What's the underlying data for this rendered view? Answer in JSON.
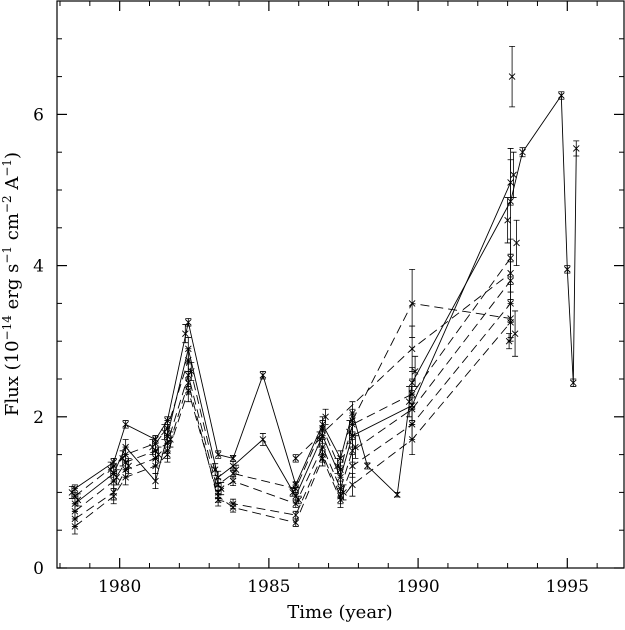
{
  "chart_data": {
    "type": "line",
    "title": "",
    "xlabel": "Time (year)",
    "ylabel_prefix": "Flux (10",
    "ylabel_exp1": "−14",
    "ylabel_mid1": " erg s",
    "ylabel_exp2": "−1",
    "ylabel_mid2": " cm",
    "ylabel_exp3": "−2",
    "ylabel_mid3": " A",
    "ylabel_exp4": "−1",
    "ylabel_suffix": ")",
    "xlim": [
      1977.9,
      1996.9
    ],
    "ylim": [
      0,
      7.5
    ],
    "x_ticks": [
      1980,
      1985,
      1990,
      1995
    ],
    "x_tick_labels": [
      "1980",
      "1985",
      "1990",
      "1995"
    ],
    "y_ticks": [
      0,
      2,
      4,
      6
    ],
    "y_tick_labels": [
      "0",
      "2",
      "4",
      "6"
    ],
    "x_minor_step": 1,
    "y_minor_step": 0.5,
    "grid": false,
    "legend": "none",
    "series": [
      {
        "style": "solid",
        "x": [
          1978.5,
          1979.8,
          1980.2,
          1981.2,
          1981.6,
          1982.3,
          1983.3,
          1983.8,
          1984.8,
          1985.9,
          1986.8,
          1987.4,
          1987.8,
          1988.3,
          1989.3,
          1989.8,
          1993.1,
          1993.5,
          1994.8,
          1995.0,
          1995.2,
          1995.3
        ],
        "y": [
          1.05,
          1.4,
          1.9,
          1.7,
          1.95,
          3.25,
          1.5,
          1.45,
          2.55,
          1.1,
          1.9,
          1.45,
          2.05,
          1.35,
          0.97,
          2.45,
          4.85,
          5.5,
          6.25,
          3.95,
          2.45,
          5.55
        ],
        "err": [
          0.05,
          0.05,
          0.05,
          0.05,
          0.05,
          0.05,
          0.05,
          0.04,
          0.05,
          0.04,
          0.1,
          0.1,
          0.15,
          0.04,
          0.03,
          0.2,
          0.7,
          0.06,
          0.05,
          0.05,
          0.05,
          0.1
        ]
      },
      {
        "style": "solid",
        "x": [
          1978.5,
          1979.8,
          1980.2,
          1981.2,
          1981.6,
          1982.3,
          1983.3,
          1983.8,
          1984.8,
          1985.9,
          1986.8,
          1987.4,
          1987.8,
          1989.8,
          1993.1
        ],
        "y": [
          0.85,
          1.25,
          1.6,
          1.15,
          1.75,
          2.9,
          1.2,
          1.35,
          1.7,
          0.95,
          1.75,
          1.2,
          1.75,
          2.15,
          5.1
        ],
        "err": [
          0.1,
          0.1,
          0.1,
          0.1,
          0.1,
          0.15,
          0.08,
          0.06,
          0.08,
          0.05,
          0.1,
          0.1,
          0.15,
          0.2,
          0.3
        ]
      },
      {
        "style": "dashed",
        "x": [
          1978.5,
          1979.8,
          1980.2,
          1981.2,
          1981.6,
          1982.3,
          1983.3,
          1983.8,
          1985.9,
          1986.8,
          1987.4,
          1987.8,
          1989.8,
          1993.1
        ],
        "y": [
          0.95,
          1.35,
          1.5,
          1.65,
          1.85,
          2.75,
          1.1,
          1.25,
          1.05,
          1.85,
          1.3,
          1.9,
          2.3,
          4.1
        ],
        "err": [
          0.1,
          0.1,
          0.1,
          0.1,
          0.1,
          0.15,
          0.08,
          0.06,
          0.05,
          0.1,
          0.1,
          0.15,
          0.2,
          0.25
        ]
      },
      {
        "style": "dashed",
        "x": [
          1978.5,
          1979.8,
          1980.2,
          1981.2,
          1981.6,
          1982.3,
          1983.3,
          1983.8,
          1985.9,
          1986.8,
          1987.4,
          1987.8,
          1989.8,
          1993.1
        ],
        "y": [
          0.75,
          1.15,
          1.4,
          1.55,
          1.65,
          2.55,
          1.0,
          1.15,
          0.85,
          1.6,
          1.05,
          1.55,
          2.1,
          3.8
        ],
        "err": [
          0.1,
          0.1,
          0.1,
          0.1,
          0.1,
          0.15,
          0.08,
          0.06,
          0.05,
          0.1,
          0.1,
          0.15,
          0.2,
          0.25
        ]
      },
      {
        "style": "dashed",
        "x": [
          1978.5,
          1979.8,
          1980.2,
          1981.2,
          1981.6,
          1982.3,
          1983.3,
          1983.8,
          1985.9,
          1986.8,
          1987.4,
          1987.8,
          1989.8,
          1993.1
        ],
        "y": [
          0.65,
          1.0,
          1.3,
          1.45,
          1.55,
          2.45,
          0.9,
          0.85,
          0.7,
          1.5,
          0.95,
          1.35,
          1.9,
          3.5
        ],
        "err": [
          0.1,
          0.1,
          0.1,
          0.1,
          0.1,
          0.15,
          0.08,
          0.06,
          0.05,
          0.1,
          0.1,
          0.15,
          0.2,
          0.25
        ]
      },
      {
        "style": "dashed",
        "x": [
          1978.5,
          1979.8,
          1980.2,
          1981.2,
          1981.6,
          1982.3,
          1983.3,
          1983.8,
          1985.9,
          1986.8,
          1987.4,
          1987.8,
          1989.8,
          1993.1
        ],
        "y": [
          0.55,
          0.95,
          1.2,
          1.35,
          1.5,
          2.35,
          0.95,
          0.8,
          0.6,
          1.45,
          0.9,
          1.1,
          1.7,
          3.25
        ],
        "err": [
          0.1,
          0.1,
          0.1,
          0.1,
          0.1,
          0.15,
          0.08,
          0.06,
          0.05,
          0.1,
          0.1,
          0.15,
          0.2,
          0.25
        ]
      },
      {
        "style": "dashed",
        "x": [
          1985.9,
          1989.8,
          1993.1
        ],
        "y": [
          1.45,
          2.9,
          3.9
        ],
        "err": [
          0.05,
          0.3,
          0.25
        ]
      },
      {
        "style": "dashed",
        "x": [
          1987.8,
          1989.8,
          1993.1
        ],
        "y": [
          1.95,
          3.5,
          3.3
        ],
        "err": [
          0.15,
          0.45,
          0.25
        ]
      }
    ],
    "scatter_points": {
      "x": [
        1978.4,
        1978.6,
        1979.7,
        1979.9,
        1980.1,
        1980.3,
        1981.1,
        1981.3,
        1981.5,
        1981.7,
        1982.2,
        1982.4,
        1983.2,
        1983.4,
        1983.9,
        1985.8,
        1986.0,
        1986.7,
        1986.9,
        1987.3,
        1987.5,
        1987.7,
        1987.9,
        1989.7,
        1989.9,
        1993.0,
        1993.2,
        1993.3,
        1993.15,
        1993.25,
        1993.05
      ],
      "y": [
        1.0,
        0.9,
        1.3,
        1.2,
        1.45,
        1.35,
        1.6,
        1.5,
        1.8,
        1.7,
        3.1,
        2.6,
        1.3,
        1.05,
        1.3,
        1.0,
        0.9,
        1.7,
        2.0,
        1.35,
        1.0,
        1.8,
        1.6,
        2.2,
        2.6,
        4.6,
        5.2,
        4.3,
        6.5,
        3.1,
        3.0
      ],
      "err": [
        0.08,
        0.08,
        0.1,
        0.1,
        0.1,
        0.1,
        0.1,
        0.1,
        0.1,
        0.1,
        0.12,
        0.12,
        0.08,
        0.08,
        0.06,
        0.05,
        0.05,
        0.1,
        0.1,
        0.1,
        0.1,
        0.15,
        0.15,
        0.2,
        0.2,
        0.3,
        0.3,
        0.3,
        0.4,
        0.3,
        0.1
      ]
    }
  }
}
